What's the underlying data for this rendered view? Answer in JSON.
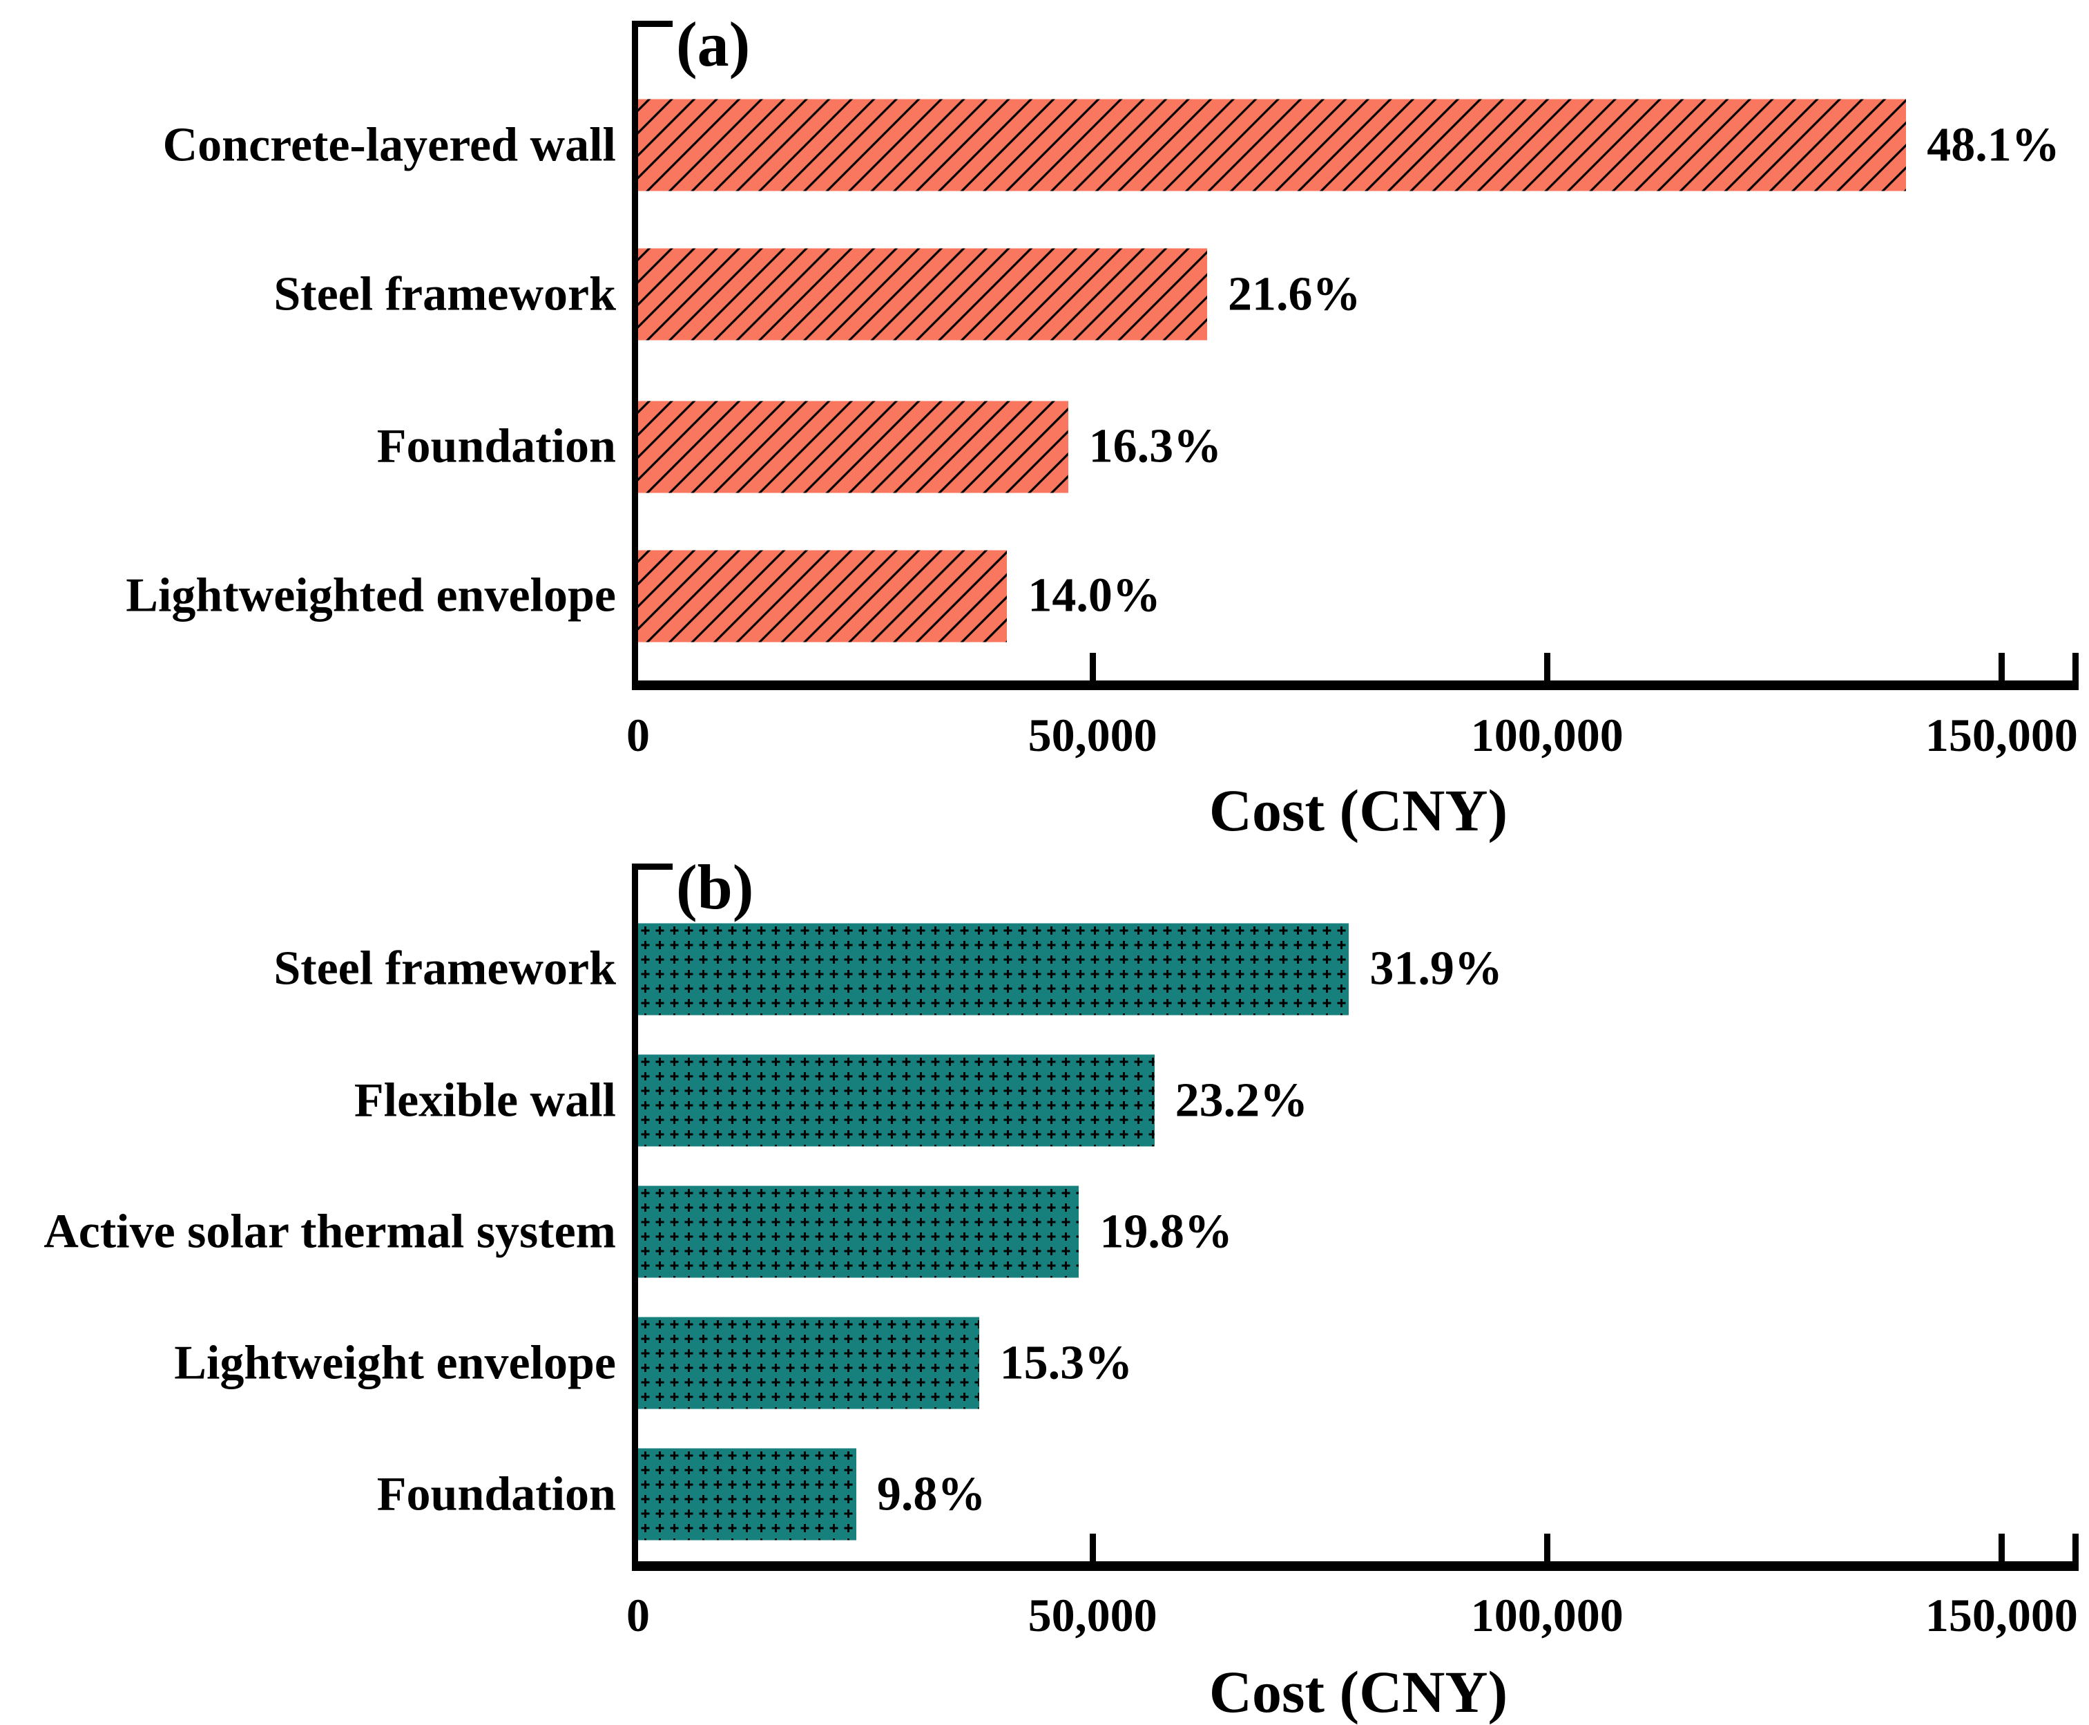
{
  "figure": {
    "background": "#ffffff",
    "text_color": "#000000",
    "description_titles": [
      "(a)",
      "(b)"
    ]
  },
  "chart_data": [
    {
      "type": "bar",
      "orientation": "horizontal",
      "title": "(a)",
      "categories": [
        "Concrete-layered wall",
        "Steel framework",
        "Foundation",
        "Lightweighted envelope"
      ],
      "values_cny": [
        139500,
        62600,
        47300,
        40600
      ],
      "percent_values": [
        48.1,
        21.6,
        16.3,
        14.0
      ],
      "percent_labels": [
        "48.1%",
        "21.6%",
        "16.3%",
        "14.0%"
      ],
      "xlabel": "Cost (CNY)",
      "xlim": [
        0,
        158000
      ],
      "xticks": [
        0,
        50000,
        100000,
        150000
      ],
      "xtick_labels": [
        "0",
        "50,000",
        "100,000",
        "150,000"
      ],
      "bar_color": "#f8775e",
      "hatch": "diagonal-forward-slash",
      "hatch_id": "diag",
      "hatch_color": "#000000",
      "grid": false,
      "legend": "none",
      "note": "values_cny estimated from axis scale; percent labels printed at bar ends"
    },
    {
      "type": "bar",
      "orientation": "horizontal",
      "title": "(b)",
      "categories": [
        "Steel framework",
        "Flexible wall",
        "Active solar thermal system",
        "Lightweight envelope",
        "Foundation"
      ],
      "values_cny": [
        78200,
        56800,
        48500,
        37500,
        24000
      ],
      "percent_values": [
        31.9,
        23.2,
        19.8,
        15.3,
        9.8
      ],
      "percent_labels": [
        "31.9%",
        "23.2%",
        "19.8%",
        "15.3%",
        "9.8%"
      ],
      "xlabel": "Cost (CNY)",
      "xlim": [
        0,
        158000
      ],
      "xticks": [
        0,
        50000,
        100000,
        150000
      ],
      "xtick_labels": [
        "0",
        "50,000",
        "100,000",
        "150,000"
      ],
      "bar_color": "#17807c",
      "hatch": "plus-cross-grid",
      "hatch_id": "plus",
      "hatch_color": "#000000",
      "grid": false,
      "legend": "none",
      "note": "values_cny estimated from axis scale; percent labels printed at bar ends"
    }
  ]
}
